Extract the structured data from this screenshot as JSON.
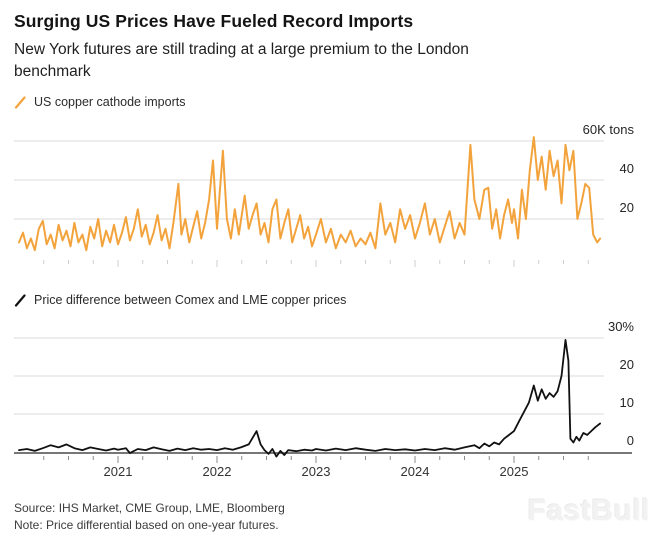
{
  "header": {
    "title": "Surging US Prices Have Fueled Record Imports",
    "subtitle": "New York futures are still trading at a large premium to the London\nbenchmark"
  },
  "colors": {
    "orange_series": "#F3A33C",
    "black_series": "#111111",
    "gridline": "#dbdbdb",
    "axis_line": "#4a4a4a",
    "tick_top_chart": "#cfcfcf",
    "tick_bottom_chart": "#8a8a8a"
  },
  "footer": {
    "source": "Source: IHS Market, CME Group, LME, Bloomberg",
    "note": "Note: Price differential based on one-year futures."
  },
  "watermark": "FastBull",
  "chart_data": [
    {
      "type": "line",
      "title": "US copper cathode imports",
      "unit": "K tons",
      "color": "#F3A33C",
      "legend_marker": "orange-slash",
      "grid": true,
      "ylim": [
        0,
        67
      ],
      "x_range": [
        2020.0,
        2025.9
      ],
      "y_ticks": [
        {
          "value": 20,
          "label": "20"
        },
        {
          "value": 40,
          "label": "40"
        },
        {
          "value": 60,
          "label": "60K tons"
        }
      ],
      "points": [
        [
          2020.0,
          8
        ],
        [
          2020.04,
          13
        ],
        [
          2020.08,
          5
        ],
        [
          2020.12,
          10
        ],
        [
          2020.16,
          4
        ],
        [
          2020.2,
          15
        ],
        [
          2020.24,
          19
        ],
        [
          2020.28,
          7
        ],
        [
          2020.32,
          12
        ],
        [
          2020.36,
          5
        ],
        [
          2020.4,
          17
        ],
        [
          2020.44,
          9
        ],
        [
          2020.48,
          14
        ],
        [
          2020.52,
          6
        ],
        [
          2020.56,
          18
        ],
        [
          2020.6,
          8
        ],
        [
          2020.64,
          12
        ],
        [
          2020.68,
          4
        ],
        [
          2020.72,
          16
        ],
        [
          2020.76,
          10
        ],
        [
          2020.8,
          20
        ],
        [
          2020.84,
          6
        ],
        [
          2020.88,
          14
        ],
        [
          2020.92,
          8
        ],
        [
          2020.96,
          17
        ],
        [
          2021.0,
          7
        ],
        [
          2021.04,
          13
        ],
        [
          2021.08,
          21
        ],
        [
          2021.12,
          9
        ],
        [
          2021.16,
          15
        ],
        [
          2021.2,
          25
        ],
        [
          2021.24,
          11
        ],
        [
          2021.28,
          17
        ],
        [
          2021.32,
          7
        ],
        [
          2021.36,
          13
        ],
        [
          2021.4,
          22
        ],
        [
          2021.44,
          9
        ],
        [
          2021.48,
          15
        ],
        [
          2021.52,
          5
        ],
        [
          2021.56,
          18
        ],
        [
          2021.61,
          38
        ],
        [
          2021.64,
          12
        ],
        [
          2021.68,
          20
        ],
        [
          2021.72,
          8
        ],
        [
          2021.76,
          16
        ],
        [
          2021.8,
          24
        ],
        [
          2021.84,
          10
        ],
        [
          2021.88,
          18
        ],
        [
          2021.92,
          30
        ],
        [
          2021.96,
          50
        ],
        [
          2022.0,
          15
        ],
        [
          2022.06,
          55
        ],
        [
          2022.1,
          20
        ],
        [
          2022.14,
          10
        ],
        [
          2022.18,
          25
        ],
        [
          2022.22,
          12
        ],
        [
          2022.28,
          32
        ],
        [
          2022.32,
          15
        ],
        [
          2022.36,
          22
        ],
        [
          2022.4,
          28
        ],
        [
          2022.44,
          12
        ],
        [
          2022.48,
          18
        ],
        [
          2022.52,
          8
        ],
        [
          2022.56,
          25
        ],
        [
          2022.6,
          30
        ],
        [
          2022.64,
          10
        ],
        [
          2022.68,
          18
        ],
        [
          2022.72,
          25
        ],
        [
          2022.76,
          8
        ],
        [
          2022.8,
          15
        ],
        [
          2022.84,
          22
        ],
        [
          2022.88,
          10
        ],
        [
          2022.92,
          16
        ],
        [
          2022.96,
          6
        ],
        [
          2023.0,
          12
        ],
        [
          2023.05,
          20
        ],
        [
          2023.1,
          8
        ],
        [
          2023.15,
          15
        ],
        [
          2023.2,
          5
        ],
        [
          2023.25,
          12
        ],
        [
          2023.3,
          8
        ],
        [
          2023.35,
          14
        ],
        [
          2023.4,
          6
        ],
        [
          2023.45,
          10
        ],
        [
          2023.5,
          7
        ],
        [
          2023.55,
          13
        ],
        [
          2023.6,
          5
        ],
        [
          2023.65,
          28
        ],
        [
          2023.7,
          12
        ],
        [
          2023.75,
          18
        ],
        [
          2023.8,
          8
        ],
        [
          2023.85,
          25
        ],
        [
          2023.9,
          15
        ],
        [
          2023.95,
          22
        ],
        [
          2024.0,
          10
        ],
        [
          2024.05,
          18
        ],
        [
          2024.1,
          28
        ],
        [
          2024.15,
          12
        ],
        [
          2024.2,
          20
        ],
        [
          2024.25,
          8
        ],
        [
          2024.3,
          16
        ],
        [
          2024.35,
          24
        ],
        [
          2024.4,
          10
        ],
        [
          2024.45,
          18
        ],
        [
          2024.5,
          12
        ],
        [
          2024.56,
          58
        ],
        [
          2024.6,
          30
        ],
        [
          2024.65,
          20
        ],
        [
          2024.7,
          35
        ],
        [
          2024.74,
          36
        ],
        [
          2024.78,
          15
        ],
        [
          2024.82,
          25
        ],
        [
          2024.86,
          10
        ],
        [
          2024.9,
          22
        ],
        [
          2024.94,
          30
        ],
        [
          2024.98,
          18
        ],
        [
          2025.0,
          25
        ],
        [
          2025.04,
          10
        ],
        [
          2025.08,
          35
        ],
        [
          2025.12,
          20
        ],
        [
          2025.16,
          45
        ],
        [
          2025.2,
          62
        ],
        [
          2025.24,
          40
        ],
        [
          2025.28,
          52
        ],
        [
          2025.32,
          35
        ],
        [
          2025.36,
          55
        ],
        [
          2025.4,
          42
        ],
        [
          2025.44,
          50
        ],
        [
          2025.48,
          28
        ],
        [
          2025.52,
          58
        ],
        [
          2025.56,
          45
        ],
        [
          2025.6,
          55
        ],
        [
          2025.64,
          20
        ],
        [
          2025.68,
          28
        ],
        [
          2025.72,
          38
        ],
        [
          2025.76,
          36
        ],
        [
          2025.8,
          12
        ],
        [
          2025.84,
          8
        ],
        [
          2025.87,
          10
        ]
      ]
    },
    {
      "type": "line",
      "title": "Price difference between Comex and LME copper prices",
      "unit": "%",
      "color": "#111111",
      "legend_marker": "black-slash",
      "grid": true,
      "ylim": [
        -2,
        32
      ],
      "x_range": [
        2020.0,
        2025.9
      ],
      "y_ticks": [
        {
          "value": 0,
          "label": "0"
        },
        {
          "value": 10,
          "label": "10"
        },
        {
          "value": 20,
          "label": "20"
        },
        {
          "value": 30,
          "label": "30%"
        }
      ],
      "x_axis": {
        "year_labels": [
          "2021",
          "2022",
          "2023",
          "2024",
          "2025"
        ],
        "minor_tick_interval_years": 0.25
      },
      "points": [
        [
          2020.0,
          0.5
        ],
        [
          2020.08,
          0.8
        ],
        [
          2020.16,
          0.3
        ],
        [
          2020.24,
          1.0
        ],
        [
          2020.32,
          1.8
        ],
        [
          2020.4,
          1.2
        ],
        [
          2020.48,
          2.0
        ],
        [
          2020.56,
          1.0
        ],
        [
          2020.64,
          0.5
        ],
        [
          2020.72,
          1.2
        ],
        [
          2020.8,
          0.8
        ],
        [
          2020.88,
          0.4
        ],
        [
          2020.96,
          0.9
        ],
        [
          2021.0,
          0.6
        ],
        [
          2021.08,
          1.0
        ],
        [
          2021.12,
          -0.3
        ],
        [
          2021.2,
          0.8
        ],
        [
          2021.28,
          0.5
        ],
        [
          2021.36,
          1.2
        ],
        [
          2021.44,
          0.7
        ],
        [
          2021.52,
          0.3
        ],
        [
          2021.6,
          0.9
        ],
        [
          2021.68,
          0.5
        ],
        [
          2021.76,
          1.0
        ],
        [
          2021.84,
          0.6
        ],
        [
          2021.92,
          0.8
        ],
        [
          2022.0,
          0.5
        ],
        [
          2022.08,
          1.0
        ],
        [
          2022.16,
          0.6
        ],
        [
          2022.24,
          1.2
        ],
        [
          2022.32,
          2.0
        ],
        [
          2022.4,
          5.5
        ],
        [
          2022.44,
          2.0
        ],
        [
          2022.48,
          0.5
        ],
        [
          2022.52,
          -0.5
        ],
        [
          2022.56,
          0.8
        ],
        [
          2022.6,
          -1.2
        ],
        [
          2022.64,
          0.3
        ],
        [
          2022.68,
          -0.8
        ],
        [
          2022.72,
          0.5
        ],
        [
          2022.8,
          0.2
        ],
        [
          2022.88,
          0.6
        ],
        [
          2022.96,
          0.4
        ],
        [
          2023.0,
          0.8
        ],
        [
          2023.1,
          0.4
        ],
        [
          2023.2,
          0.9
        ],
        [
          2023.3,
          0.5
        ],
        [
          2023.4,
          1.0
        ],
        [
          2023.5,
          0.6
        ],
        [
          2023.6,
          0.3
        ],
        [
          2023.7,
          0.8
        ],
        [
          2023.8,
          0.5
        ],
        [
          2023.9,
          0.7
        ],
        [
          2024.0,
          0.4
        ],
        [
          2024.1,
          0.8
        ],
        [
          2024.2,
          0.5
        ],
        [
          2024.3,
          1.0
        ],
        [
          2024.4,
          0.6
        ],
        [
          2024.5,
          1.2
        ],
        [
          2024.6,
          1.8
        ],
        [
          2024.65,
          1.0
        ],
        [
          2024.7,
          2.2
        ],
        [
          2024.75,
          1.5
        ],
        [
          2024.8,
          2.5
        ],
        [
          2024.85,
          2.0
        ],
        [
          2024.9,
          3.5
        ],
        [
          2024.95,
          4.5
        ],
        [
          2025.0,
          5.5
        ],
        [
          2025.05,
          8.0
        ],
        [
          2025.1,
          10.5
        ],
        [
          2025.15,
          13.0
        ],
        [
          2025.2,
          17.5
        ],
        [
          2025.24,
          13.5
        ],
        [
          2025.28,
          16.5
        ],
        [
          2025.32,
          14.0
        ],
        [
          2025.36,
          15.5
        ],
        [
          2025.4,
          14.5
        ],
        [
          2025.44,
          16.0
        ],
        [
          2025.48,
          20.0
        ],
        [
          2025.52,
          29.5
        ],
        [
          2025.55,
          24.0
        ],
        [
          2025.57,
          3.5
        ],
        [
          2025.6,
          2.5
        ],
        [
          2025.63,
          4.0
        ],
        [
          2025.66,
          3.0
        ],
        [
          2025.7,
          5.0
        ],
        [
          2025.74,
          4.5
        ],
        [
          2025.78,
          5.5
        ],
        [
          2025.82,
          6.5
        ],
        [
          2025.87,
          7.5
        ]
      ]
    }
  ]
}
